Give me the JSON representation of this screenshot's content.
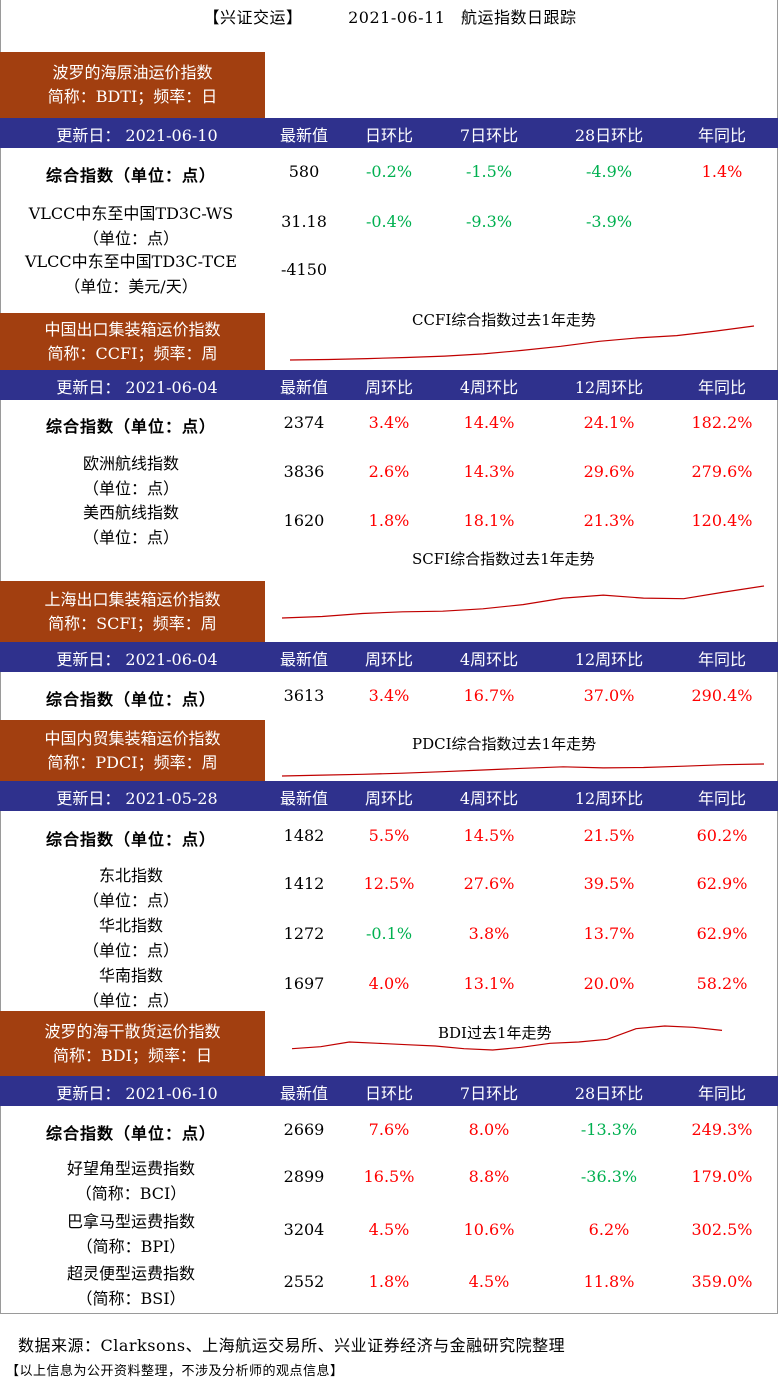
{
  "header": {
    "bracket": "【兴证交运】",
    "date": "2021-06-11",
    "title": "航运指数日跟踪"
  },
  "sections": [
    {
      "id": "bdti",
      "name": "波罗的海原油运价指数",
      "abbr": "简称：BDTI；频率：日",
      "update": "更新日： 2021-06-10",
      "cols": [
        "最新值",
        "日环比",
        "7日环比",
        "28日环比",
        "年同比"
      ],
      "rows": [
        {
          "name": "综合指数（单位：点）",
          "bold": true,
          "values": [
            "580",
            "-0.2%",
            "-1.5%",
            "-4.9%",
            "1.4%"
          ]
        },
        {
          "name": "VLCC中东至中国TD3C-WS",
          "unit": "（单位：点）",
          "values": [
            "31.18",
            "-0.4%",
            "-9.3%",
            "-3.9%",
            ""
          ]
        },
        {
          "name": "VLCC中东至中国TD3C-TCE",
          "unit": "（单位：美元/天）",
          "values": [
            "-4150",
            "",
            "",
            "",
            ""
          ]
        }
      ],
      "chart_title": ""
    },
    {
      "id": "ccfi",
      "name": "中国出口集装箱运价指数",
      "abbr": "简称：CCFI；频率：周",
      "update": "更新日： 2021-06-04",
      "cols": [
        "最新值",
        "周环比",
        "4周环比",
        "12周环比",
        "年同比"
      ],
      "rows": [
        {
          "name": "综合指数（单位：点）",
          "bold": true,
          "values": [
            "2374",
            "3.4%",
            "14.4%",
            "24.1%",
            "182.2%"
          ]
        },
        {
          "name": "欧洲航线指数",
          "unit": "（单位：点）",
          "values": [
            "3836",
            "2.6%",
            "14.3%",
            "29.6%",
            "279.6%"
          ]
        },
        {
          "name": "美西航线指数",
          "unit": "（单位：点）",
          "values": [
            "1620",
            "1.8%",
            "18.1%",
            "21.3%",
            "120.4%"
          ]
        }
      ],
      "chart_title": "CCFI综合指数过去1年走势"
    },
    {
      "id": "scfi",
      "name": "上海出口集装箱运价指数",
      "abbr": "简称：SCFI；频率：周",
      "update": "更新日： 2021-06-04",
      "cols": [
        "最新值",
        "周环比",
        "4周环比",
        "12周环比",
        "年同比"
      ],
      "rows": [
        {
          "name": "综合指数（单位：点）",
          "bold": true,
          "values": [
            "3613",
            "3.4%",
            "16.7%",
            "37.0%",
            "290.4%"
          ]
        }
      ],
      "chart_title": "SCFI综合指数过去1年走势"
    },
    {
      "id": "pdci",
      "name": "中国内贸集装箱运价指数",
      "abbr": "简称：PDCI；频率：周",
      "update": "更新日： 2021-05-28",
      "cols": [
        "最新值",
        "周环比",
        "4周环比",
        "12周环比",
        "年同比"
      ],
      "rows": [
        {
          "name": "综合指数（单位：点）",
          "bold": true,
          "values": [
            "1482",
            "5.5%",
            "14.5%",
            "21.5%",
            "60.2%"
          ]
        },
        {
          "name": "东北指数",
          "unit": "（单位：点）",
          "values": [
            "1412",
            "12.5%",
            "27.6%",
            "39.5%",
            "62.9%"
          ]
        },
        {
          "name": "华北指数",
          "unit": "（单位：点）",
          "values": [
            "1272",
            "-0.1%",
            "3.8%",
            "13.7%",
            "62.9%"
          ]
        },
        {
          "name": "华南指数",
          "unit": "（单位：点）",
          "values": [
            "1697",
            "4.0%",
            "13.1%",
            "20.0%",
            "58.2%"
          ]
        }
      ],
      "chart_title": "PDCI综合指数过去1年走势"
    },
    {
      "id": "bdi",
      "name": "波罗的海干散货运价指数",
      "abbr": "简称：BDI；频率：日",
      "update": "更新日： 2021-06-10",
      "cols": [
        "最新值",
        "日环比",
        "7日环比",
        "28日环比",
        "年同比"
      ],
      "rows": [
        {
          "name": "综合指数（单位：点）",
          "bold": true,
          "values": [
            "2669",
            "7.6%",
            "8.0%",
            "-13.3%",
            "249.3%"
          ]
        },
        {
          "name": "好望角型运费指数",
          "unit": "（简称：BCI）",
          "values": [
            "2899",
            "16.5%",
            "8.8%",
            "-36.3%",
            "179.0%"
          ]
        },
        {
          "name": "巴拿马型运费指数",
          "unit": "（简称：BPI）",
          "values": [
            "3204",
            "4.5%",
            "10.6%",
            "6.2%",
            "302.5%"
          ]
        },
        {
          "name": "超灵便型运费指数",
          "unit": "（简称：BSI）",
          "values": [
            "2552",
            "1.8%",
            "4.5%",
            "11.8%",
            "359.0%"
          ]
        }
      ],
      "chart_title": "BDI过去1年走势"
    }
  ],
  "footer": {
    "source": "数据来源：Clarksons、上海航运交易所、兴业证券经济与金融研究院整理",
    "disclaimer": "【以上信息为公开资料整理，不涉及分析师的观点信息】"
  },
  "colors": {
    "section_bg": "#a23f10",
    "header_bg": "#2f318d",
    "positive": "#ff0000",
    "negative": "#00b050",
    "trend_line": "#c00000"
  },
  "chart_data": [
    {
      "type": "line",
      "title": "CCFI综合指数过去1年走势",
      "x": [
        1,
        2,
        3,
        4,
        5,
        6,
        7,
        8,
        9,
        10,
        11,
        12,
        13
      ],
      "series": [
        {
          "values": [
            880,
            900,
            940,
            990,
            1050,
            1150,
            1300,
            1480,
            1700,
            1850,
            1950,
            2150,
            2374
          ]
        }
      ]
    },
    {
      "type": "line",
      "title": "SCFI综合指数过去1年走势",
      "x": [
        1,
        2,
        3,
        4,
        5,
        6,
        7,
        8,
        9,
        10,
        11,
        12,
        13
      ],
      "series": [
        {
          "values": [
            925,
            1050,
            1300,
            1450,
            1500,
            1700,
            2050,
            2600,
            2850,
            2600,
            2550,
            3100,
            3613
          ]
        }
      ]
    },
    {
      "type": "line",
      "title": "PDCI综合指数过去1年走势",
      "x": [
        1,
        2,
        3,
        4,
        5,
        6,
        7,
        8,
        9,
        10,
        11,
        12,
        13
      ],
      "series": [
        {
          "values": [
            920,
            960,
            1000,
            1050,
            1120,
            1200,
            1280,
            1350,
            1300,
            1320,
            1380,
            1450,
            1482
          ]
        }
      ]
    },
    {
      "type": "line",
      "title": "BDI过去1年走势",
      "x": [
        1,
        2,
        3,
        4,
        5,
        6,
        7,
        8,
        9,
        10,
        11,
        12,
        13,
        14,
        15,
        16
      ],
      "series": [
        {
          "values": [
            1300,
            1450,
            1800,
            1700,
            1600,
            1500,
            1300,
            1200,
            1400,
            1700,
            1800,
            2000,
            2800,
            3000,
            2900,
            2669
          ]
        }
      ]
    }
  ]
}
